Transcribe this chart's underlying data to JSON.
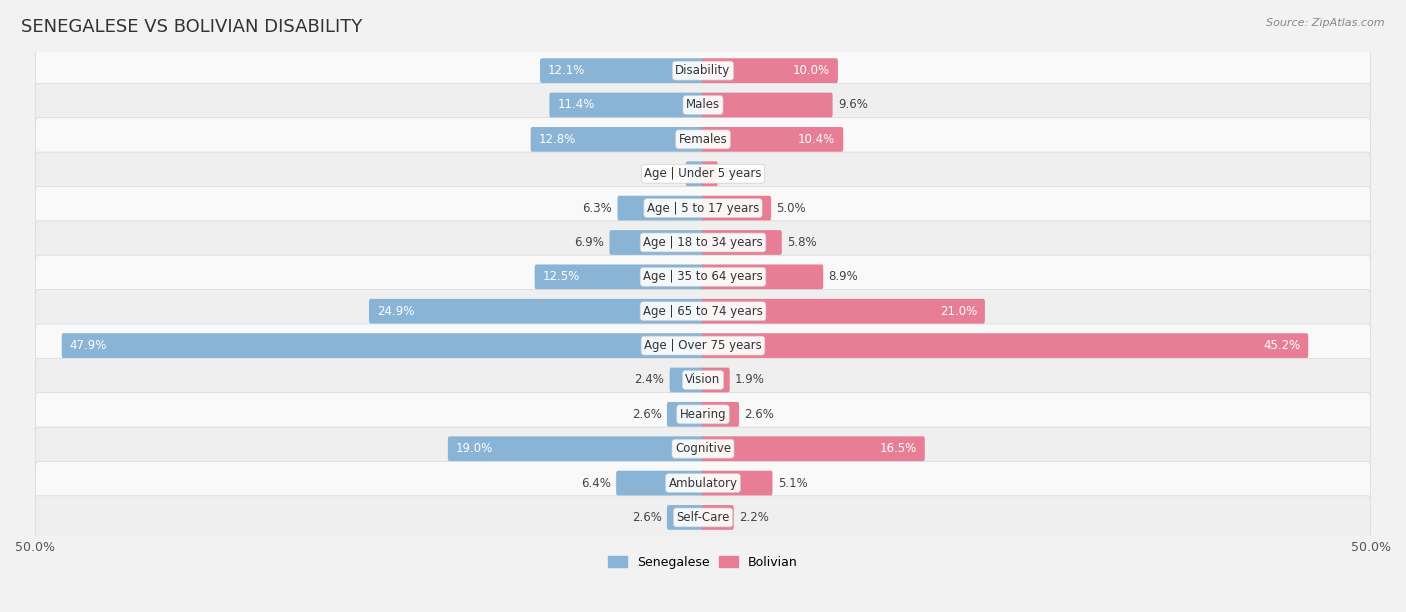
{
  "title": "SENEGALESE VS BOLIVIAN DISABILITY",
  "source_text": "Source: ZipAtlas.com",
  "categories": [
    "Disability",
    "Males",
    "Females",
    "Age | Under 5 years",
    "Age | 5 to 17 years",
    "Age | 18 to 34 years",
    "Age | 35 to 64 years",
    "Age | 65 to 74 years",
    "Age | Over 75 years",
    "Vision",
    "Hearing",
    "Cognitive",
    "Ambulatory",
    "Self-Care"
  ],
  "senegalese": [
    12.1,
    11.4,
    12.8,
    1.2,
    6.3,
    6.9,
    12.5,
    24.9,
    47.9,
    2.4,
    2.6,
    19.0,
    6.4,
    2.6
  ],
  "bolivian": [
    10.0,
    9.6,
    10.4,
    1.0,
    5.0,
    5.8,
    8.9,
    21.0,
    45.2,
    1.9,
    2.6,
    16.5,
    5.1,
    2.2
  ],
  "senegalese_color": "#89b4d6",
  "bolivian_color": "#e87e96",
  "bar_height": 0.52,
  "xlim": 50.0,
  "background_color": "#f2f2f2",
  "row_color_light": "#f9f9f9",
  "row_color_dark": "#efefef",
  "row_border_color": "#d8d8d8",
  "title_fontsize": 13,
  "label_fontsize": 8.5,
  "tick_fontsize": 9,
  "legend_fontsize": 9,
  "value_label_threshold": 10.0
}
